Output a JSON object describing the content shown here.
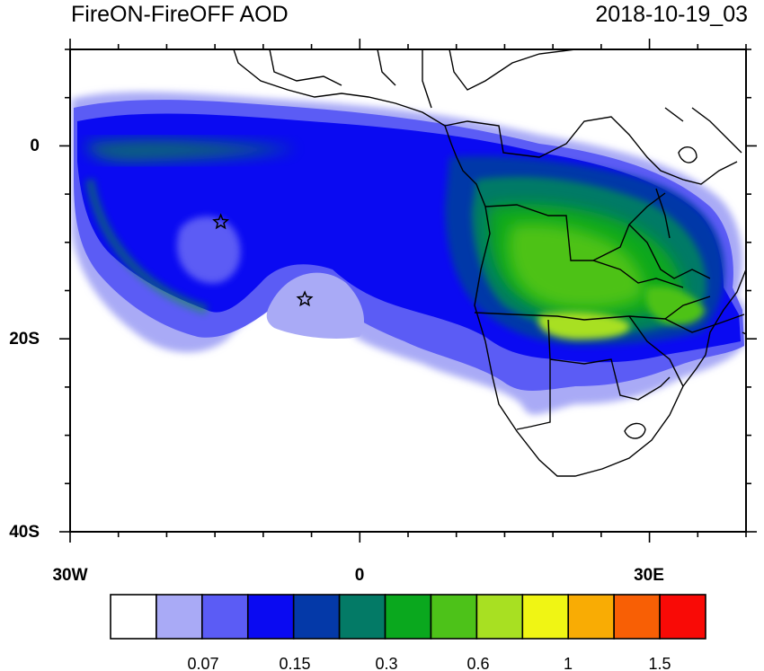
{
  "header": {
    "title": "FireON-FireOFF AOD",
    "timestamp": "2018-10-19_03"
  },
  "axes": {
    "x_ticks": [
      {
        "lon": -30,
        "label": "30W"
      },
      {
        "lon": 0,
        "label": "0"
      },
      {
        "lon": 30,
        "label": "30E"
      }
    ],
    "y_ticks": [
      {
        "lat": 0,
        "label": "0"
      },
      {
        "lat": -20,
        "label": "20S"
      },
      {
        "lat": -40,
        "label": "40S"
      }
    ],
    "lon_range": [
      -30,
      40
    ],
    "lat_range": [
      -40,
      10
    ]
  },
  "colorbar": {
    "colors": [
      "#ffffff",
      "#a9aaf6",
      "#5b5cf5",
      "#0a0af2",
      "#0439a8",
      "#037a66",
      "#0aa81e",
      "#4dc219",
      "#a8e022",
      "#f0f514",
      "#f9ac04",
      "#f85f05",
      "#f90a06"
    ],
    "labels": [
      {
        "after_box": 2,
        "text": "0.07"
      },
      {
        "after_box": 4,
        "text": "0.15"
      },
      {
        "after_box": 6,
        "text": "0.3"
      },
      {
        "after_box": 8,
        "text": "0.6"
      },
      {
        "after_box": 10,
        "text": "1"
      },
      {
        "after_box": 12,
        "text": "1.5"
      }
    ]
  },
  "markers": [
    {
      "name": "star-marker-ascension",
      "lon": -14.4,
      "lat": -7.9
    },
    {
      "name": "star-marker-st-helena",
      "lon": -5.7,
      "lat": -15.9
    }
  ]
}
